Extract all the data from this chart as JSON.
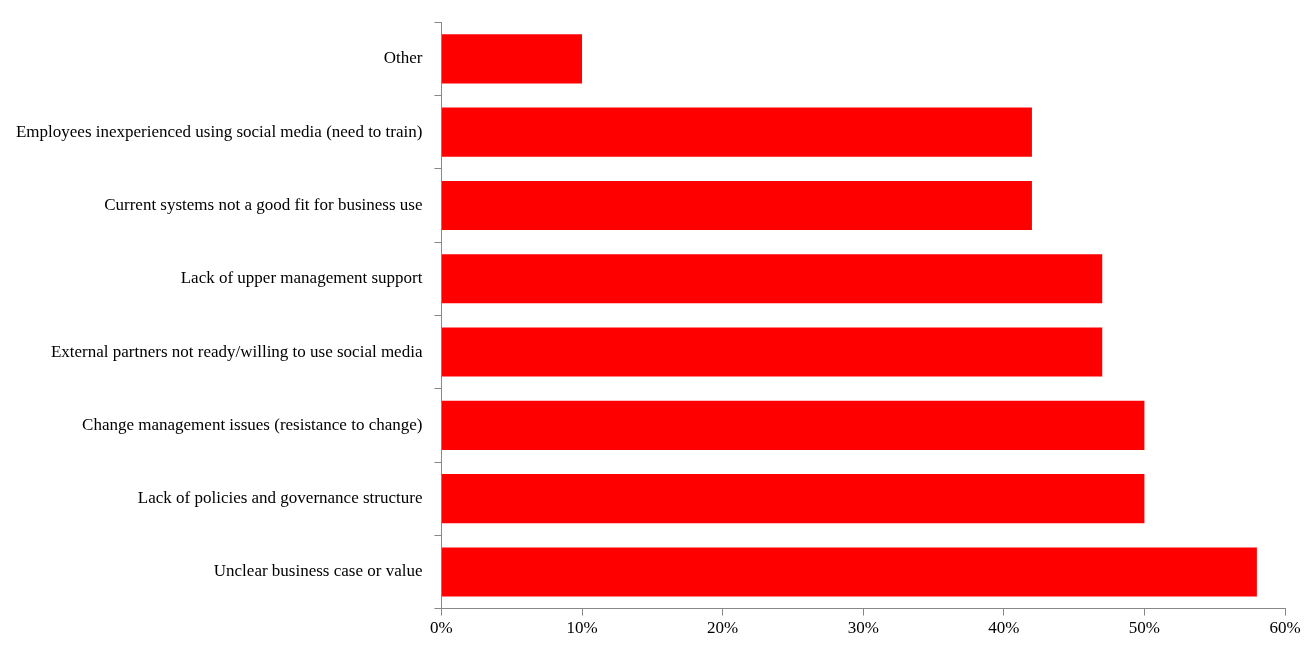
{
  "chart_data": {
    "type": "bar",
    "orientation": "horizontal",
    "categories": [
      "Other",
      "Employees inexperienced using social media (need to train)",
      "Current systems not a good fit for business use",
      "Lack of upper management support",
      "External partners not ready/willing to use social media",
      "Change management issues (resistance to change)",
      "Lack of policies and governance structure",
      "Unclear business case or value"
    ],
    "values": [
      10,
      42,
      42,
      47,
      47,
      50,
      50,
      58
    ],
    "color": "#ff0000",
    "xlim": [
      0,
      60
    ],
    "xticks": [
      {
        "value": 0,
        "label": "0%"
      },
      {
        "value": 10,
        "label": "10%"
      },
      {
        "value": 20,
        "label": "20%"
      },
      {
        "value": 30,
        "label": "30%"
      },
      {
        "value": 40,
        "label": "40%"
      },
      {
        "value": 50,
        "label": "50%"
      },
      {
        "value": 60,
        "label": "60%"
      }
    ],
    "grid": false,
    "legend": false
  }
}
